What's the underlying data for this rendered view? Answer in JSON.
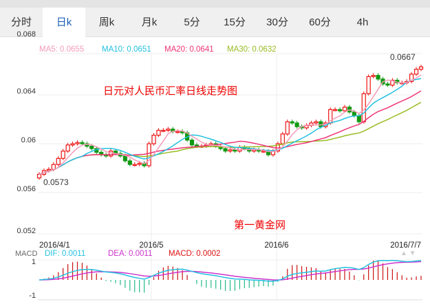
{
  "tabs": [
    {
      "label": "分时"
    },
    {
      "label": "日k",
      "active": true
    },
    {
      "label": "周k"
    },
    {
      "label": "月k"
    },
    {
      "label": "5分"
    },
    {
      "label": "15分"
    },
    {
      "label": "30分"
    },
    {
      "label": "60分"
    },
    {
      "label": "4h"
    }
  ],
  "legend": {
    "ma5": "MA5: 0.0655",
    "ma10": "MA10: 0.0651",
    "ma20": "MA20: 0.0641",
    "ma30": "MA30: 0.0632",
    "macd_title": "MACD",
    "dif": "DIF: 0.0011",
    "dea": "DEA: 0.0011",
    "macd": "MACD: 0.0002"
  },
  "colors": {
    "up": "#ee1111",
    "down": "#119911",
    "ma5": "#f59cb8",
    "ma10": "#22c0e0",
    "ma20": "#ee3377",
    "ma30": "#99bb22",
    "dif": "#22c0e0",
    "dea": "#cc33cc"
  },
  "annotations": {
    "title": "日元对人民币汇率日线走势图",
    "watermark": "第一黄金网",
    "min_label": "0.0573",
    "max_label": "0.0667"
  },
  "chart_data": {
    "type": "candlestick",
    "title": "日元对人民币汇率日线走势图",
    "y_ticks": [
      "0.068",
      "0.064",
      "0.06",
      "0.056",
      "0.052"
    ],
    "y_tick_values": [
      0.068,
      0.064,
      0.06,
      0.056,
      0.052
    ],
    "x_ticks": [
      "2016/4/1",
      "2016/5",
      "2016/6",
      "2016/7/7"
    ],
    "macd_ticks": [
      "1",
      "-1"
    ],
    "close": [
      0.0575,
      0.0578,
      0.0579,
      0.0583,
      0.0588,
      0.0594,
      0.0599,
      0.06,
      0.0601,
      0.06,
      0.0598,
      0.0596,
      0.0593,
      0.0591,
      0.059,
      0.0594,
      0.0592,
      0.059,
      0.0586,
      0.0583,
      0.0583,
      0.0584,
      0.0582,
      0.06,
      0.0607,
      0.0611,
      0.0611,
      0.0612,
      0.061,
      0.061,
      0.0609,
      0.0603,
      0.0599,
      0.0598,
      0.0598,
      0.0599,
      0.06,
      0.0598,
      0.0596,
      0.0594,
      0.0595,
      0.0594,
      0.0597,
      0.0596,
      0.0594,
      0.0595,
      0.0594,
      0.0594,
      0.0591,
      0.0594,
      0.06,
      0.0608,
      0.0618,
      0.0617,
      0.0614,
      0.0613,
      0.0615,
      0.0617,
      0.0618,
      0.0614,
      0.0617,
      0.0628,
      0.0628,
      0.0627,
      0.063,
      0.0626,
      0.0623,
      0.0618,
      0.0641,
      0.0655,
      0.0656,
      0.0653,
      0.0649,
      0.0648,
      0.0652,
      0.065,
      0.065,
      0.0651,
      0.0657,
      0.0661,
      0.0663
    ]
  }
}
